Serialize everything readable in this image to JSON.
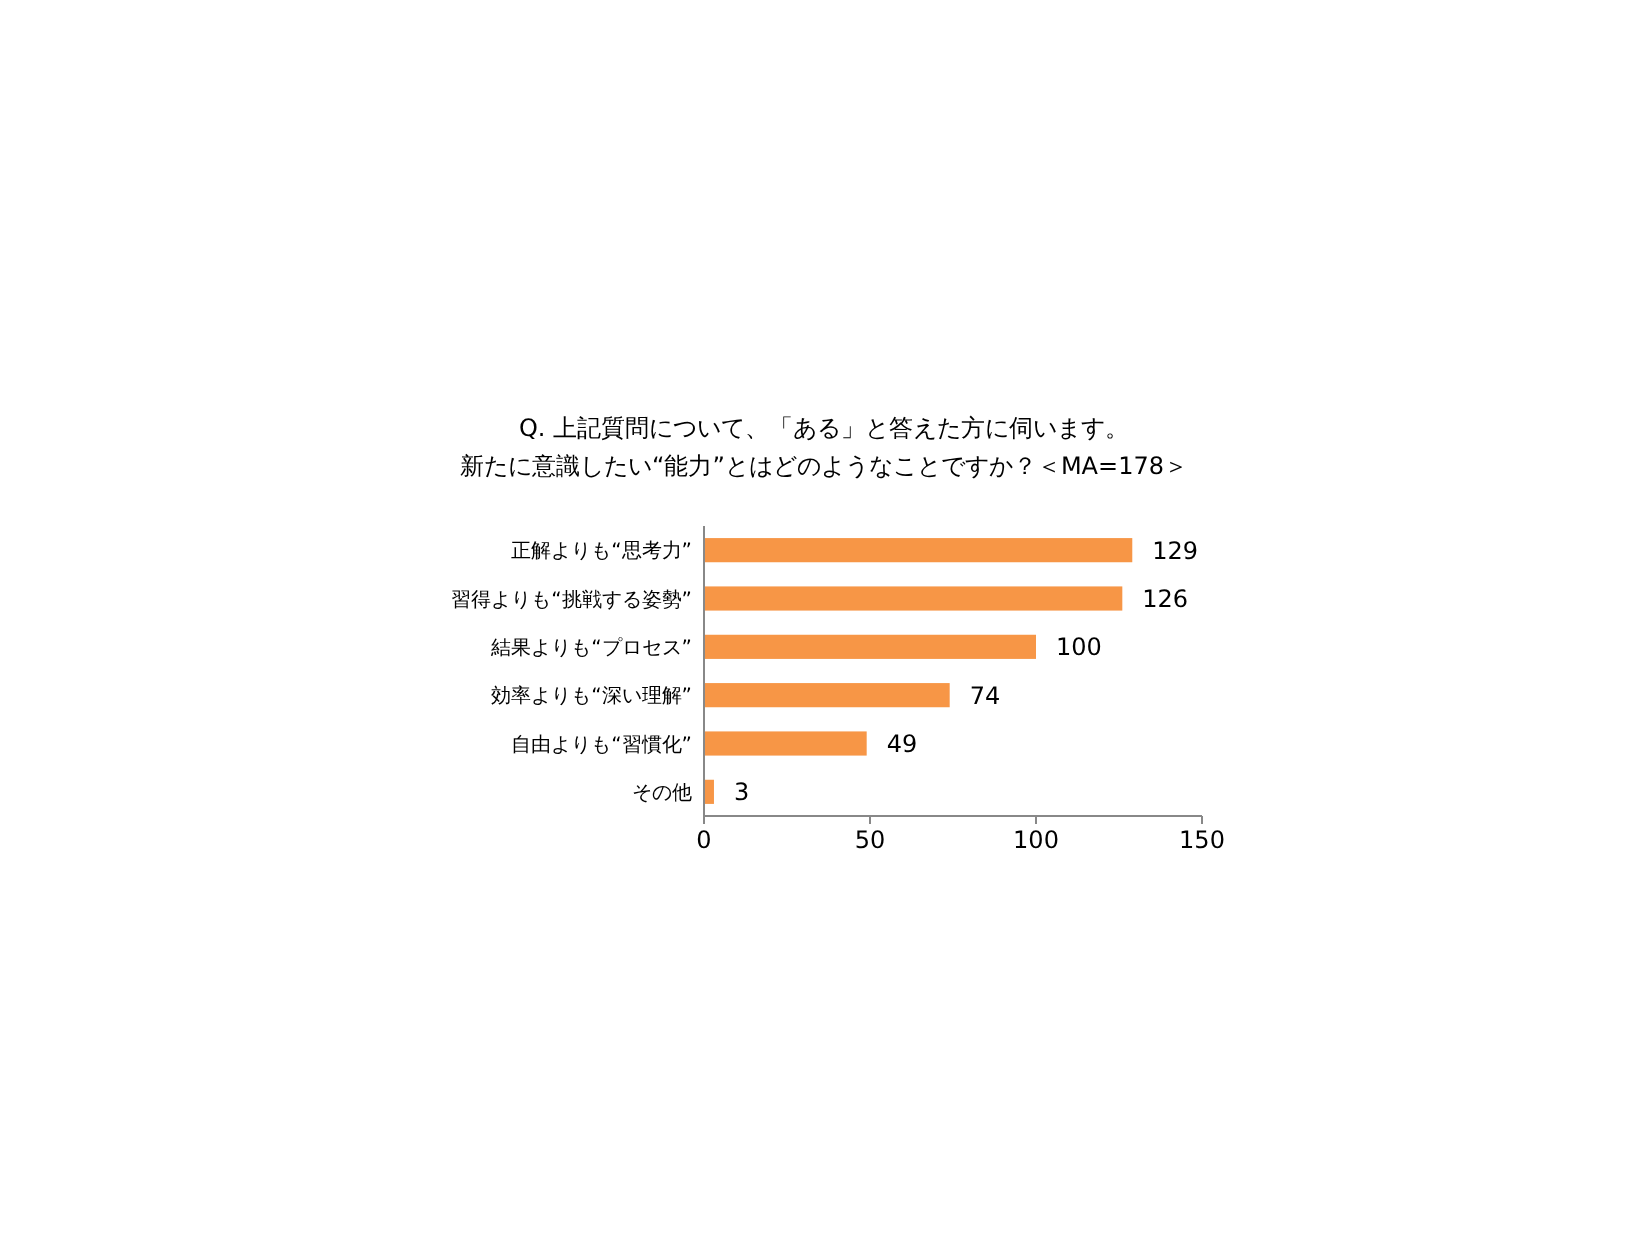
{
  "chart_data": {
    "type": "bar",
    "orientation": "horizontal",
    "title": "Q. 上記質問について、「ある」と答えた方に伺います。新たに意識したい“能力”とはどのようなことですか？＜MA=178＞",
    "categories": [
      "正解よりも“思考力”",
      "習得よりも“挑戦する姿勢”",
      "結果よりも“プロセス”",
      "効率よりも“深い理解”",
      "自由よりも“習慣化”",
      "その他"
    ],
    "values": [
      129,
      126,
      100,
      74,
      49,
      3
    ],
    "color": "#f79646",
    "data_labels": true,
    "xlim": [
      0,
      150
    ],
    "xticks": [
      0,
      50,
      100,
      150
    ],
    "grid": false
  }
}
